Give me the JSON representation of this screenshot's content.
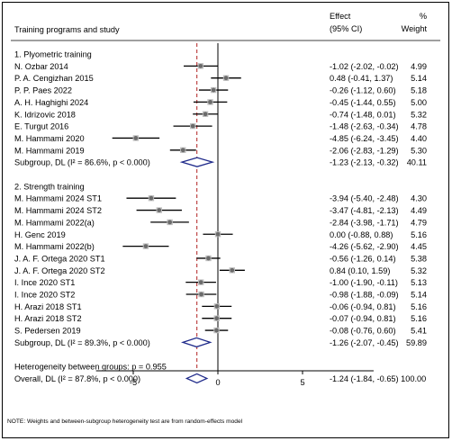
{
  "chart_data": {
    "type": "forest",
    "header": {
      "study_col": "Training programs and study",
      "effect_line1": "Effect",
      "effect_line2": "(95% CI)",
      "weight_line1": "%",
      "weight_line2": "Weight"
    },
    "colors": {
      "point": "#6b6b6b",
      "ci": "#000000",
      "diamond": "#1f2a8a",
      "overall_line": "#b22222",
      "null_line": "#000000"
    },
    "x_ticks": [
      -5,
      0,
      5
    ],
    "xlim": [
      -7.2,
      9.2
    ],
    "null_value": 0,
    "overall_effect": -1.24,
    "rows": [
      {
        "kind": "group",
        "label": "1. Plyometric training"
      },
      {
        "kind": "study",
        "label": "N. Ozbar 2014",
        "est": -1.02,
        "lo": -2.02,
        "hi": -0.02,
        "ci_text": "-1.02 (-2.02, -0.02)",
        "weight": "4.99"
      },
      {
        "kind": "study",
        "label": "P. A. Cengizhan 2015",
        "est": 0.48,
        "lo": -0.41,
        "hi": 1.37,
        "ci_text": "0.48 (-0.41, 1.37)",
        "weight": "5.14"
      },
      {
        "kind": "study",
        "label": "P. P. Paes 2022",
        "est": -0.26,
        "lo": -1.12,
        "hi": 0.6,
        "ci_text": "-0.26 (-1.12, 0.60)",
        "weight": "5.18"
      },
      {
        "kind": "study",
        "label": "A. H. Haghighi 2024",
        "est": -0.45,
        "lo": -1.44,
        "hi": 0.55,
        "ci_text": "-0.45 (-1.44, 0.55)",
        "weight": "5.00"
      },
      {
        "kind": "study",
        "label": "K. Idrizovic 2018",
        "est": -0.74,
        "lo": -1.48,
        "hi": 0.01,
        "ci_text": "-0.74 (-1.48, 0.01)",
        "weight": "5.32"
      },
      {
        "kind": "study",
        "label": "E. Turgut 2016",
        "est": -1.48,
        "lo": -2.63,
        "hi": -0.34,
        "ci_text": "-1.48 (-2.63, -0.34)",
        "weight": "4.78"
      },
      {
        "kind": "study",
        "label": "M. Hammami 2020",
        "est": -4.85,
        "lo": -6.24,
        "hi": -3.45,
        "ci_text": "-4.85 (-6.24, -3.45)",
        "weight": "4.40"
      },
      {
        "kind": "study",
        "label": "M. Hammami 2019",
        "est": -2.06,
        "lo": -2.83,
        "hi": -1.29,
        "ci_text": "-2.06 (-2.83, -1.29)",
        "weight": "5.30"
      },
      {
        "kind": "subgroup",
        "label": "Subgroup, DL (I² = 86.6%, p < 0.000)",
        "est": -1.23,
        "lo": -2.13,
        "hi": -0.32,
        "ci_text": "-1.23 (-2.13, -0.32)",
        "weight": "40.11"
      },
      {
        "kind": "blank"
      },
      {
        "kind": "group",
        "label": "2. Strength training"
      },
      {
        "kind": "study",
        "label": "M. Hammami 2024 ST1",
        "est": -3.94,
        "lo": -5.4,
        "hi": -2.48,
        "ci_text": "-3.94 (-5.40, -2.48)",
        "weight": "4.30"
      },
      {
        "kind": "study",
        "label": "M. Hammami 2024 ST2",
        "est": -3.47,
        "lo": -4.81,
        "hi": -2.13,
        "ci_text": "-3.47 (-4.81, -2.13)",
        "weight": "4.49"
      },
      {
        "kind": "study",
        "label": "M. Hammami 2022(a)",
        "est": -2.84,
        "lo": -3.98,
        "hi": -1.71,
        "ci_text": "-2.84 (-3.98, -1.71)",
        "weight": "4.79"
      },
      {
        "kind": "study",
        "label": "H. Genc 2019",
        "est": 0.0,
        "lo": -0.88,
        "hi": 0.88,
        "ci_text": "0.00 (-0.88, 0.88)",
        "weight": "5.16"
      },
      {
        "kind": "study",
        "label": "M. Hammami 2022(b)",
        "est": -4.26,
        "lo": -5.62,
        "hi": -2.9,
        "ci_text": "-4.26 (-5.62, -2.90)",
        "weight": "4.45"
      },
      {
        "kind": "study",
        "label": "J. A. F. Ortega 2020 ST1",
        "est": -0.56,
        "lo": -1.26,
        "hi": 0.14,
        "ci_text": "-0.56 (-1.26, 0.14)",
        "weight": "5.38"
      },
      {
        "kind": "study",
        "label": "J. A. F. Ortega 2020 ST2",
        "est": 0.84,
        "lo": 0.1,
        "hi": 1.59,
        "ci_text": "0.84 (0.10, 1.59)",
        "weight": "5.32"
      },
      {
        "kind": "study",
        "label": "I. Ince 2020 ST1",
        "est": -1.0,
        "lo": -1.9,
        "hi": -0.11,
        "ci_text": "-1.00 (-1.90, -0.11)",
        "weight": "5.13"
      },
      {
        "kind": "study",
        "label": "I. Ince 2020 ST2",
        "est": -0.98,
        "lo": -1.88,
        "hi": -0.09,
        "ci_text": "-0.98 (-1.88, -0.09)",
        "weight": "5.14"
      },
      {
        "kind": "study",
        "label": "H. Arazi 2018 ST1",
        "est": -0.06,
        "lo": -0.94,
        "hi": 0.81,
        "ci_text": "-0.06 (-0.94, 0.81)",
        "weight": "5.16"
      },
      {
        "kind": "study",
        "label": "H. Arazi 2018 ST2",
        "est": -0.07,
        "lo": -0.94,
        "hi": 0.81,
        "ci_text": "-0.07 (-0.94, 0.81)",
        "weight": "5.16"
      },
      {
        "kind": "study",
        "label": "S. Pedersen 2019",
        "est": -0.08,
        "lo": -0.76,
        "hi": 0.6,
        "ci_text": "-0.08 (-0.76, 0.60)",
        "weight": "5.41"
      },
      {
        "kind": "subgroup",
        "label": "Subgroup, DL (I² = 89.3%, p < 0.000)",
        "est": -1.26,
        "lo": -2.07,
        "hi": -0.45,
        "ci_text": "-1.26 (-2.07, -0.45)",
        "weight": "59.89"
      },
      {
        "kind": "blank"
      },
      {
        "kind": "text",
        "label": "Heterogeneity between groups: p = 0.955"
      },
      {
        "kind": "overall",
        "label": "Overall, DL (I² = 87.8%, p < 0.000)",
        "est": -1.24,
        "lo": -1.84,
        "hi": -0.65,
        "ci_text": "-1.24 (-1.84, -0.65) 100.00",
        "weight": ""
      }
    ],
    "note": "NOTE: Weights and between-subgroup heterogeneity test are from random-effects model"
  }
}
